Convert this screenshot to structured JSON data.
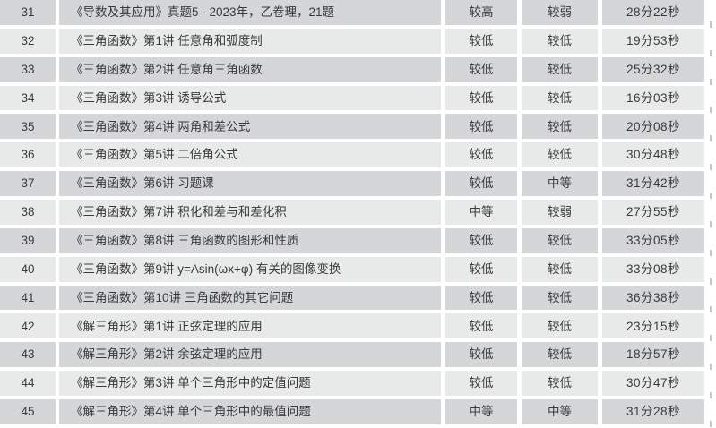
{
  "colors": {
    "row_dark": "#d4d6d8",
    "row_light": "#e8e9e9",
    "text": "#3a3a3c",
    "background": "#ffffff",
    "gridline_stub": "#c4c6c8"
  },
  "table": {
    "rows": [
      {
        "no": "31",
        "title": "《导数及其应用》真题5 - 2023年，乙卷理，21题",
        "level1": "较高",
        "level2": "较弱",
        "duration": "28分22秒"
      },
      {
        "no": "32",
        "title": "《三角函数》第1讲 任意角和弧度制",
        "level1": "较低",
        "level2": "较低",
        "duration": "19分53秒"
      },
      {
        "no": "33",
        "title": "《三角函数》第2讲 任意角三角函数",
        "level1": "较低",
        "level2": "较低",
        "duration": "25分32秒"
      },
      {
        "no": "34",
        "title": "《三角函数》第3讲 诱导公式",
        "level1": "较低",
        "level2": "较低",
        "duration": "16分03秒"
      },
      {
        "no": "35",
        "title": "《三角函数》第4讲 两角和差公式",
        "level1": "较低",
        "level2": "较低",
        "duration": "20分08秒"
      },
      {
        "no": "36",
        "title": "《三角函数》第5讲 二倍角公式",
        "level1": "较低",
        "level2": "较低",
        "duration": "30分48秒"
      },
      {
        "no": "37",
        "title": "《三角函数》第6讲 习题课",
        "level1": "较低",
        "level2": "中等",
        "duration": "31分42秒"
      },
      {
        "no": "38",
        "title": "《三角函数》第7讲 积化和差与和差化积",
        "level1": "中等",
        "level2": "较弱",
        "duration": "27分55秒"
      },
      {
        "no": "39",
        "title": "《三角函数》第8讲 三角函数的图形和性质",
        "level1": "较低",
        "level2": "较低",
        "duration": "33分05秒"
      },
      {
        "no": "40",
        "title": "《三角函数》第9讲 y=Asin(ωx+φ) 有关的图像变换",
        "level1": "较低",
        "level2": "较低",
        "duration": "33分08秒"
      },
      {
        "no": "41",
        "title": "《三角函数》第10讲 三角函数的其它问题",
        "level1": "较低",
        "level2": "较低",
        "duration": "36分38秒"
      },
      {
        "no": "42",
        "title": "《解三角形》第1讲 正弦定理的应用",
        "level1": "较低",
        "level2": "较低",
        "duration": "23分15秒"
      },
      {
        "no": "43",
        "title": "《解三角形》第2讲 余弦定理的应用",
        "level1": "较低",
        "level2": "较低",
        "duration": "18分57秒"
      },
      {
        "no": "44",
        "title": "《解三角形》第3讲 单个三角形中的定值问题",
        "level1": "较低",
        "level2": "较低",
        "duration": "30分47秒"
      },
      {
        "no": "45",
        "title": "《解三角形》第4讲 单个三角形中的最值问题",
        "level1": "中等",
        "level2": "中等",
        "duration": "31分28秒"
      }
    ]
  }
}
